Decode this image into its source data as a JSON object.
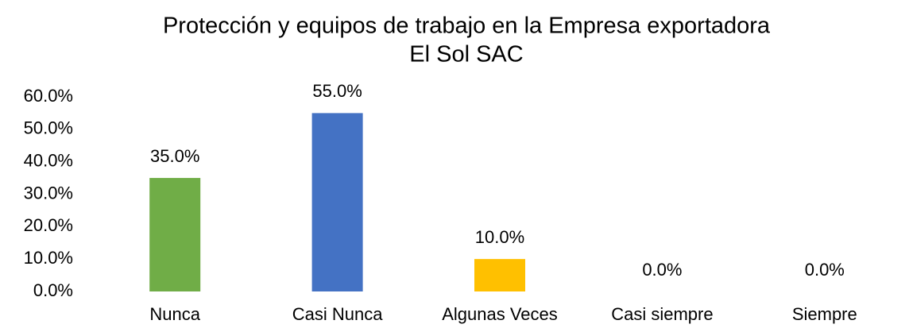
{
  "chart_data": {
    "type": "bar",
    "title": [
      "Protección y equipos de trabajo en la Empresa exportadora",
      "El Sol SAC"
    ],
    "categories": [
      "Nunca",
      "Casi Nunca",
      "Algunas Veces",
      "Casi siempre",
      "Siempre"
    ],
    "values": [
      35,
      55,
      10,
      0,
      0
    ],
    "value_labels": [
      "35.0%",
      "55.0%",
      "10.0%",
      "0.0%",
      "0.0%"
    ],
    "colors": [
      "#70ad47",
      "#4472c4",
      "#ffc000",
      "#a5a5a5",
      "#5b9bd5"
    ],
    "ylim": [
      0,
      60
    ],
    "yticks": [
      {
        "value": 0,
        "label": "0.0%"
      },
      {
        "value": 10,
        "label": "10.0%"
      },
      {
        "value": 20,
        "label": "20.0%"
      },
      {
        "value": 30,
        "label": "30.0%"
      },
      {
        "value": 40,
        "label": "40.0%"
      },
      {
        "value": 50,
        "label": "50.0%"
      },
      {
        "value": 60,
        "label": "60.0%"
      }
    ],
    "grid": false
  }
}
